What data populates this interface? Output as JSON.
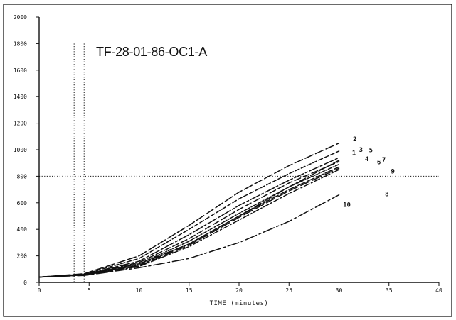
{
  "chart_data": {
    "type": "line",
    "title": "TF-28-01-86-OC1-A",
    "xlabel": "TIME (minutes)",
    "ylabel": "",
    "xlim": [
      0,
      40
    ],
    "ylim": [
      0,
      2000
    ],
    "x_ticks": [
      0,
      5,
      10,
      15,
      20,
      25,
      30,
      35,
      40
    ],
    "y_ticks": [
      0,
      200,
      400,
      600,
      800,
      1000,
      1200,
      1400,
      1600,
      1800,
      2000
    ],
    "x_tick_labels": [
      "0",
      "5",
      "10",
      "15",
      "20",
      "25",
      "30",
      "35",
      "40"
    ],
    "y_tick_labels": [
      "0",
      "200",
      "400",
      "600",
      "800",
      "1000",
      "1200",
      "1400",
      "1600",
      "1800",
      "2000"
    ],
    "reference_lines": {
      "horizontal": [
        800
      ],
      "vertical": [
        3.5,
        4.5
      ]
    },
    "grid": false,
    "legend": "none",
    "series": [
      {
        "name": "1",
        "x": [
          0,
          4.5,
          10,
          15,
          20,
          25,
          30
        ],
        "y": [
          40,
          60,
          140,
          290,
          500,
          720,
          920
        ],
        "label_at": [
          31.3,
          960
        ]
      },
      {
        "name": "2",
        "x": [
          0,
          4.5,
          10,
          15,
          20,
          25,
          30
        ],
        "y": [
          40,
          65,
          200,
          430,
          680,
          880,
          1050
        ],
        "label_at": [
          31.4,
          1065
        ]
      },
      {
        "name": "3",
        "x": [
          0,
          4.5,
          10,
          15,
          20,
          25,
          30
        ],
        "y": [
          40,
          62,
          180,
          400,
          630,
          820,
          990
        ],
        "label_at": [
          32.0,
          985
        ]
      },
      {
        "name": "4",
        "x": [
          0,
          4.5,
          10,
          15,
          20,
          25,
          30
        ],
        "y": [
          40,
          60,
          160,
          360,
          580,
          770,
          940
        ],
        "label_at": [
          32.6,
          915
        ]
      },
      {
        "name": "5",
        "x": [
          0,
          4.5,
          10,
          15,
          20,
          25,
          30
        ],
        "y": [
          40,
          58,
          150,
          330,
          550,
          750,
          910
        ],
        "label_at": [
          33.0,
          980
        ]
      },
      {
        "name": "6",
        "x": [
          0,
          4.5,
          10,
          15,
          20,
          25,
          30
        ],
        "y": [
          40,
          57,
          140,
          310,
          520,
          720,
          890
        ],
        "label_at": [
          33.8,
          890
        ]
      },
      {
        "name": "7",
        "x": [
          0,
          4.5,
          10,
          15,
          20,
          25,
          30
        ],
        "y": [
          40,
          56,
          130,
          290,
          500,
          700,
          870
        ],
        "label_at": [
          34.3,
          910
        ]
      },
      {
        "name": "8",
        "x": [
          0,
          4.5,
          10,
          15,
          20,
          25,
          30
        ],
        "y": [
          40,
          55,
          120,
          270,
          470,
          670,
          850
        ],
        "label_at": [
          34.6,
          650
        ]
      },
      {
        "name": "9",
        "x": [
          0,
          4.5,
          10,
          15,
          20,
          25,
          30
        ],
        "y": [
          40,
          55,
          125,
          280,
          490,
          690,
          860
        ],
        "label_at": [
          35.2,
          820
        ]
      },
      {
        "name": "10",
        "x": [
          0,
          4.5,
          10,
          15,
          20,
          25,
          30
        ],
        "y": [
          40,
          52,
          110,
          180,
          300,
          460,
          660
        ],
        "label_at": [
          30.4,
          570
        ]
      }
    ]
  }
}
